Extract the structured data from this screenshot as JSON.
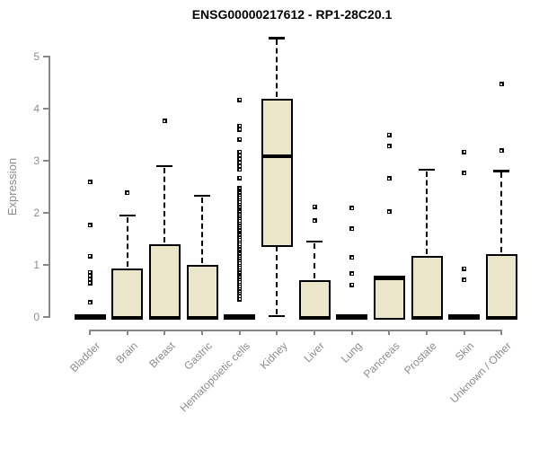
{
  "chart_data": {
    "type": "boxplot",
    "title": "ENSG00000217612 - RP1-28C20.1",
    "ylabel": "Expression",
    "xlabel": "",
    "ylim": [
      0,
      5.4
    ],
    "yticks": [
      0,
      1,
      2,
      3,
      4,
      5
    ],
    "grid": false,
    "legend": "none",
    "categories": [
      "Bladder",
      "Brain",
      "Breast",
      "Gastric",
      "Hematopoietic cells",
      "Kidney",
      "Liver",
      "Lung",
      "Pancreas",
      "Prostate",
      "Skin",
      "Unknown / Other"
    ],
    "series": [
      {
        "name": "Bladder",
        "q1": 0,
        "median": 0,
        "q3": 0,
        "whisker_low": 0,
        "whisker_high": 0,
        "outliers": [
          2.59,
          1.76,
          1.17,
          0.86,
          0.79,
          0.72,
          0.65,
          0.28
        ]
      },
      {
        "name": "Brain",
        "q1": 0,
        "median": 0,
        "q3": 0.93,
        "whisker_low": 0,
        "whisker_high": 1.95,
        "outliers": [
          2.38
        ]
      },
      {
        "name": "Breast",
        "q1": 0,
        "median": 0,
        "q3": 1.4,
        "whisker_low": 0,
        "whisker_high": 2.9,
        "outliers": [
          3.76
        ]
      },
      {
        "name": "Gastric",
        "q1": 0,
        "median": 0,
        "q3": 1.0,
        "whisker_low": 0,
        "whisker_high": 2.33,
        "outliers": []
      },
      {
        "name": "Hematopoietic cells",
        "q1": 0,
        "median": 0,
        "q3": 0,
        "whisker_low": 0,
        "whisker_high": 0,
        "outliers": [
          4.17,
          3.67,
          3.6,
          3.41,
          3.17,
          3.1,
          3.03,
          2.97,
          2.9,
          2.83,
          2.67,
          2.47,
          2.42,
          2.38,
          2.33,
          2.29,
          2.24,
          2.2,
          2.15,
          2.11,
          2.06,
          2.02,
          1.97,
          1.93,
          1.88,
          1.84,
          1.79,
          1.75,
          1.7,
          1.66,
          1.61,
          1.57,
          1.52,
          1.48,
          1.43,
          1.39,
          1.34,
          1.3,
          1.25,
          1.21,
          1.16,
          1.12,
          1.07,
          1.03,
          0.98,
          0.94,
          0.89,
          0.85,
          0.8,
          0.76,
          0.71,
          0.67,
          0.62,
          0.58,
          0.53,
          0.49,
          0.44,
          0.4,
          0.34
        ]
      },
      {
        "name": "Kidney",
        "q1": 1.4,
        "median": 3.1,
        "q3": 4.19,
        "whisker_low": 0.02,
        "whisker_high": 5.36,
        "outliers": []
      },
      {
        "name": "Liver",
        "q1": 0,
        "median": 0,
        "q3": 0.7,
        "whisker_low": 0,
        "whisker_high": 1.45,
        "outliers": [
          2.12,
          1.85
        ]
      },
      {
        "name": "Lung",
        "q1": 0,
        "median": 0,
        "q3": 0,
        "whisker_low": 0,
        "whisker_high": 0,
        "outliers": [
          2.09,
          1.69,
          1.14,
          0.83,
          0.62
        ]
      },
      {
        "name": "Pancreas",
        "q1": 0,
        "median": 0.76,
        "q3": 0.8,
        "whisker_low": 0,
        "whisker_high": 0.8,
        "outliers": [
          3.5,
          3.28,
          2.66,
          2.02
        ]
      },
      {
        "name": "Prostate",
        "q1": 0,
        "median": 0,
        "q3": 1.17,
        "whisker_low": 0,
        "whisker_high": 2.83,
        "outliers": []
      },
      {
        "name": "Skin",
        "q1": 0,
        "median": 0,
        "q3": 0,
        "whisker_low": 0,
        "whisker_high": 0,
        "outliers": [
          3.17,
          2.76,
          0.93,
          0.71
        ]
      },
      {
        "name": "Unknown / Other",
        "q1": 0,
        "median": 0,
        "q3": 1.21,
        "whisker_low": 0,
        "whisker_high": 2.81,
        "outliers": [
          4.47,
          3.19
        ]
      }
    ],
    "colors": {
      "box_fill": "#ebe6ca",
      "box_border": "#000000",
      "whisker": "#000000",
      "outlier": "#000000",
      "axis": "#878787",
      "tick_label": "#8c8c8c",
      "title": "#000000",
      "background": "#ffffff"
    }
  }
}
